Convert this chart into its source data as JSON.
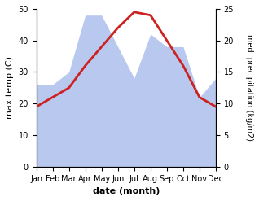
{
  "months": [
    "Jan",
    "Feb",
    "Mar",
    "Apr",
    "May",
    "Jun",
    "Jul",
    "Aug",
    "Sep",
    "Oct",
    "Nov",
    "Dec"
  ],
  "temp": [
    19,
    22,
    25,
    32,
    38,
    44,
    49,
    48,
    40,
    32,
    22,
    19
  ],
  "precip": [
    13,
    13,
    15,
    24,
    24,
    19,
    14,
    21,
    19,
    19,
    11,
    14
  ],
  "temp_color": "#cc2222",
  "precip_color": "#b8c8ee",
  "left_ylim": [
    0,
    50
  ],
  "right_ylim": [
    0,
    25
  ],
  "left_yticks": [
    0,
    10,
    20,
    30,
    40,
    50
  ],
  "right_yticks": [
    0,
    5,
    10,
    15,
    20,
    25
  ],
  "ylabel_left": "max temp (C)",
  "ylabel_right": "med. precipitation (kg/m2)",
  "xlabel": "date (month)",
  "figsize": [
    3.18,
    2.47
  ],
  "dpi": 100
}
